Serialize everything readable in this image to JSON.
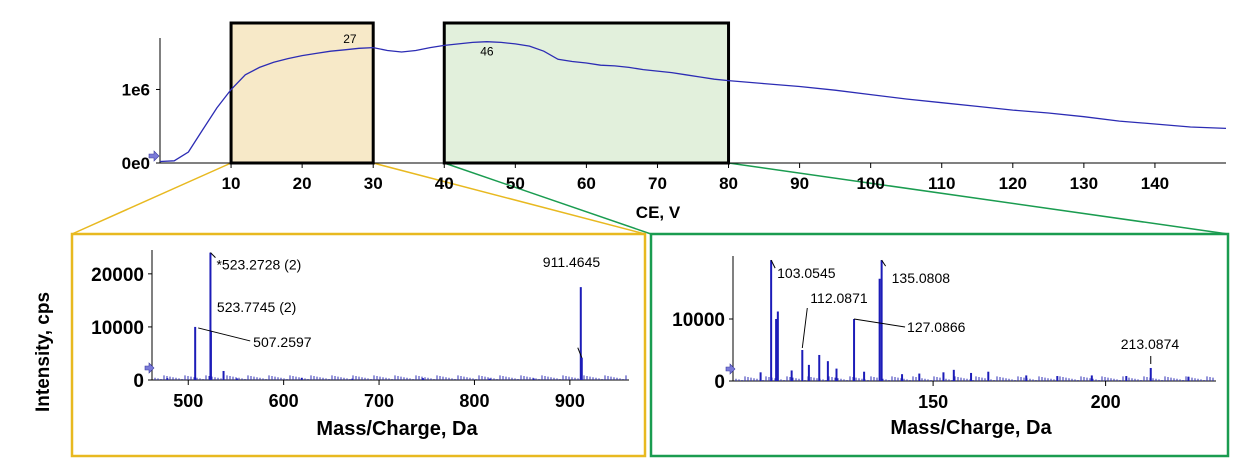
{
  "chart_data": [
    {
      "id": "top",
      "type": "line",
      "xlabel": "CE, V",
      "ylabel": "",
      "xlim": [
        0,
        150
      ],
      "ylim": [
        0,
        1700000
      ],
      "xticks": [
        10,
        20,
        30,
        40,
        50,
        60,
        70,
        80,
        90,
        100,
        110,
        120,
        130,
        140
      ],
      "yticks": [
        {
          "value": 0,
          "label": "0e0"
        },
        {
          "value": 1000000,
          "label": "1e6"
        }
      ],
      "series": [
        {
          "color": "#2c2cb4",
          "x": [
            0,
            2,
            4,
            6,
            8,
            10,
            12,
            14,
            16,
            18,
            20,
            22,
            24,
            26,
            28,
            30,
            32,
            34,
            36,
            38,
            40,
            42,
            44,
            46,
            48,
            50,
            52,
            54,
            56,
            58,
            60,
            62,
            64,
            66,
            68,
            70,
            72,
            74,
            76,
            78,
            80,
            85,
            90,
            95,
            100,
            105,
            110,
            115,
            120,
            125,
            130,
            135,
            140,
            145,
            150
          ],
          "y": [
            20000,
            30000,
            150000,
            450000,
            750000,
            1000000,
            1200000,
            1300000,
            1370000,
            1420000,
            1460000,
            1490000,
            1520000,
            1540000,
            1560000,
            1570000,
            1530000,
            1510000,
            1530000,
            1570000,
            1600000,
            1620000,
            1640000,
            1650000,
            1640000,
            1620000,
            1590000,
            1520000,
            1410000,
            1380000,
            1360000,
            1330000,
            1320000,
            1300000,
            1270000,
            1250000,
            1230000,
            1200000,
            1170000,
            1140000,
            1120000,
            1080000,
            1040000,
            990000,
            930000,
            870000,
            820000,
            770000,
            720000,
            680000,
            630000,
            570000,
            530000,
            490000,
            470000
          ]
        }
      ],
      "annotations": [
        {
          "x": 27,
          "label": "27"
        },
        {
          "x": 46,
          "label": "46"
        }
      ],
      "highlights": [
        {
          "from": 10,
          "to": 30,
          "fill": "#f7e9c8",
          "connector": "#e8b920"
        },
        {
          "from": 40,
          "to": 80,
          "fill": "#e2f0dc",
          "connector": "#1a9c50"
        }
      ]
    },
    {
      "id": "left",
      "type": "bar",
      "xlabel": "Mass/Charge, Da",
      "ylabel": "Intensity, cps",
      "xlim": [
        462,
        962
      ],
      "ylim": [
        0,
        26000
      ],
      "xticks": [
        500,
        600,
        700,
        800,
        900
      ],
      "yticks": [
        0,
        10000,
        20000
      ],
      "frame_color": "#e8b920",
      "peaks": [
        {
          "x": 507.2597,
          "y": 10000,
          "label": "507.2597"
        },
        {
          "x": 523.2728,
          "y": 24000,
          "label": "*523.2728 (2)"
        },
        {
          "x": 523.7745,
          "y": 9200,
          "label": "523.7745 (2)"
        },
        {
          "x": 911.4645,
          "y": 17500,
          "label": "911.4645"
        },
        {
          "x": 912.5,
          "y": 4200,
          "label": ""
        },
        {
          "x": 537,
          "y": 1700,
          "label": ""
        },
        {
          "x": 478,
          "y": 350,
          "label": ""
        },
        {
          "x": 551,
          "y": 300,
          "label": ""
        },
        {
          "x": 619,
          "y": 400,
          "label": ""
        },
        {
          "x": 672,
          "y": 250,
          "label": ""
        },
        {
          "x": 746,
          "y": 350,
          "label": ""
        },
        {
          "x": 816,
          "y": 250,
          "label": ""
        },
        {
          "x": 862,
          "y": 300,
          "label": ""
        }
      ]
    },
    {
      "id": "right",
      "type": "bar",
      "xlabel": "Mass/Charge, Da",
      "ylabel": "",
      "xlim": [
        92,
        232
      ],
      "ylim": [
        0,
        20000
      ],
      "xticks": [
        150,
        200
      ],
      "yticks": [
        0,
        10000
      ],
      "frame_color": "#1a9c50",
      "peaks": [
        {
          "x": 103.0545,
          "y": 19500,
          "label": "103.0545"
        },
        {
          "x": 104.5,
          "y": 10000,
          "label": ""
        },
        {
          "x": 105,
          "y": 11200,
          "label": ""
        },
        {
          "x": 112.0871,
          "y": 5000,
          "label": "112.0871"
        },
        {
          "x": 127.0866,
          "y": 10000,
          "label": "127.0866"
        },
        {
          "x": 135.0808,
          "y": 19500,
          "label": "135.0808"
        },
        {
          "x": 134.5,
          "y": 16500,
          "label": ""
        },
        {
          "x": 213.0874,
          "y": 2100,
          "label": "213.0874"
        },
        {
          "x": 117,
          "y": 4200,
          "label": ""
        },
        {
          "x": 119.5,
          "y": 3200,
          "label": ""
        },
        {
          "x": 114,
          "y": 2600,
          "label": ""
        },
        {
          "x": 109,
          "y": 1700,
          "label": ""
        },
        {
          "x": 100,
          "y": 1400,
          "label": ""
        },
        {
          "x": 122,
          "y": 2000,
          "label": ""
        },
        {
          "x": 130,
          "y": 1500,
          "label": ""
        },
        {
          "x": 141,
          "y": 1100,
          "label": ""
        },
        {
          "x": 146,
          "y": 1200,
          "label": ""
        },
        {
          "x": 153,
          "y": 1400,
          "label": ""
        },
        {
          "x": 156,
          "y": 1800,
          "label": ""
        },
        {
          "x": 161,
          "y": 1300,
          "label": ""
        },
        {
          "x": 166,
          "y": 1500,
          "label": ""
        },
        {
          "x": 177,
          "y": 900,
          "label": ""
        },
        {
          "x": 186,
          "y": 800,
          "label": ""
        },
        {
          "x": 196,
          "y": 900,
          "label": ""
        },
        {
          "x": 206,
          "y": 800,
          "label": ""
        },
        {
          "x": 224,
          "y": 700,
          "label": ""
        }
      ]
    }
  ]
}
